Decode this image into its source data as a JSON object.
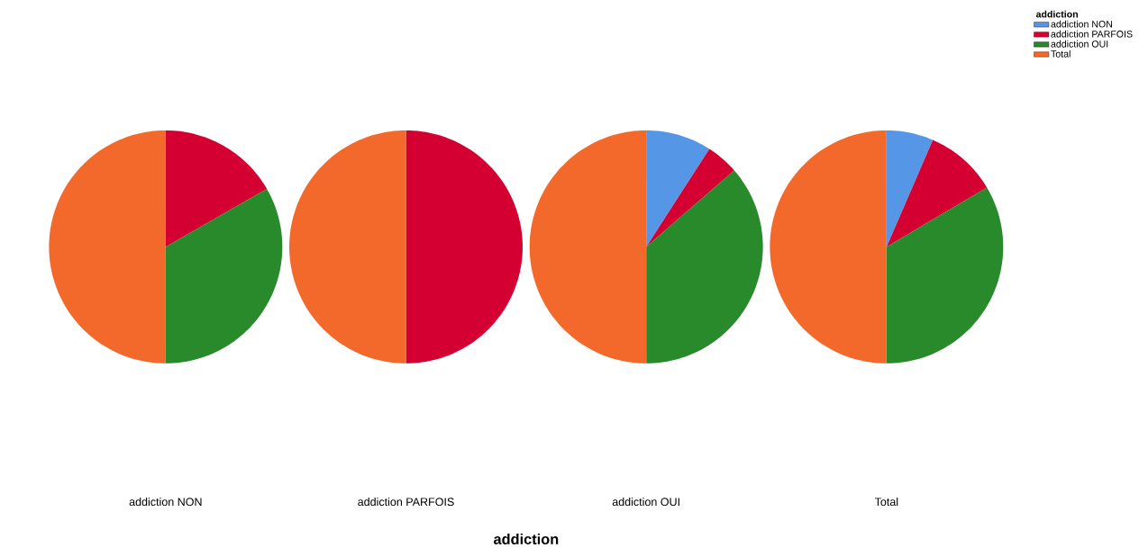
{
  "chart_data": [
    {
      "type": "pie",
      "title": "addiction NON",
      "categories": [
        null,
        null,
        null,
        null
      ],
      "values": [
        0,
        16.7,
        33.3,
        50
      ],
      "colors": [
        "#5597e6",
        "#d50032",
        "#288a2a",
        "#f2692b"
      ]
    },
    {
      "type": "pie",
      "title": "addiction PARFOIS",
      "categories": [
        null,
        null,
        null,
        null
      ],
      "values": [
        0,
        50,
        0,
        50
      ],
      "colors": [
        "#5597e6",
        "#d50032",
        "#288a2a",
        "#f2692b"
      ],
      "xlabel": "addiction"
    },
    {
      "type": "pie",
      "title": "addiction OUI",
      "categories": [
        null,
        null,
        null,
        null
      ],
      "values": [
        9.1,
        4.5,
        36.4,
        50
      ],
      "colors": [
        "#5597e6",
        "#d50032",
        "#288a2a",
        "#f2692b"
      ]
    },
    {
      "type": "pie",
      "title": "Total",
      "categories": [
        "addiction NON",
        "addiction PARFOIS",
        "addiction OUI",
        "Total"
      ],
      "values": [
        6.5,
        10,
        33.5,
        50
      ],
      "colors": [
        "#5597e6",
        "#d50032",
        "#288a2a",
        "#f2692b"
      ],
      "legend": "top right",
      "legend_title": "addiction"
    }
  ]
}
